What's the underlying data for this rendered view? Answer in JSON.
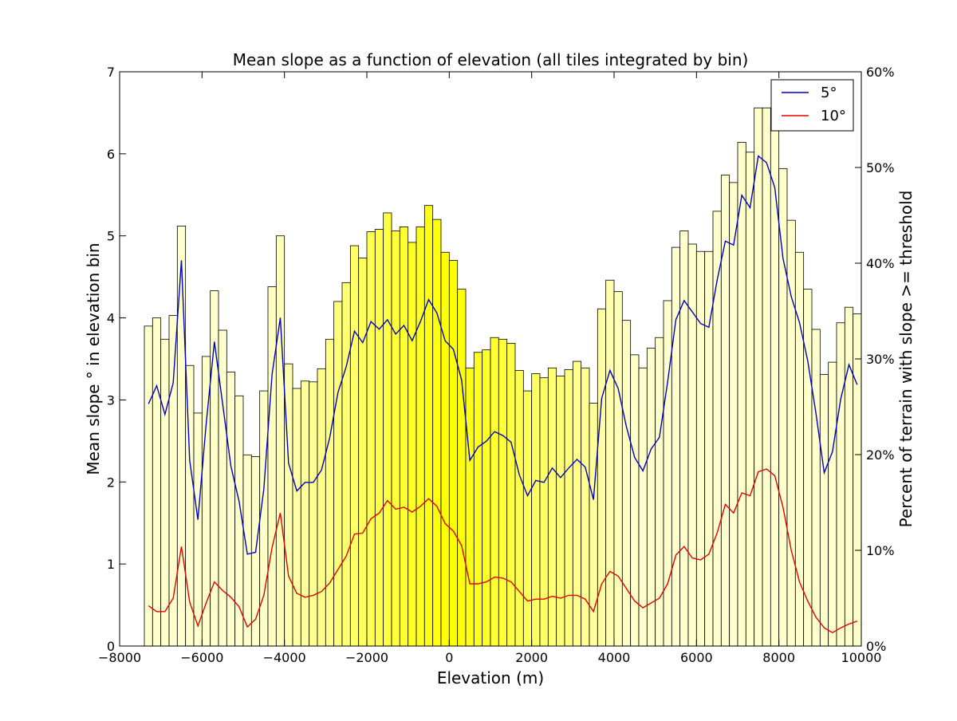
{
  "chart_data": {
    "type": "bar",
    "title": "Mean slope as a function of elevation (all tiles integrated by bin)",
    "xlabel": "Elevation (m)",
    "ylabel": "Mean slope ° in elevation bin",
    "ylabel_right": "Percent of terrain with slope >= threshold",
    "xlim": [
      -8000,
      10000
    ],
    "ylim": [
      0,
      7
    ],
    "ylim_right": [
      0,
      60
    ],
    "x_ticks": [
      -8000,
      -6000,
      -4000,
      -2000,
      0,
      2000,
      4000,
      6000,
      8000,
      10000
    ],
    "x_tick_labels": [
      "−8000",
      "−6000",
      "−4000",
      "−2000",
      "0",
      "2000",
      "4000",
      "6000",
      "8000",
      "10000"
    ],
    "y_ticks": [
      0,
      1,
      2,
      3,
      4,
      5,
      6,
      7
    ],
    "y_tick_labels": [
      "0",
      "1",
      "2",
      "3",
      "4",
      "5",
      "6",
      "7"
    ],
    "y_right_ticks": [
      0,
      10,
      20,
      30,
      40,
      50,
      60
    ],
    "y_right_tick_labels": [
      "0%",
      "10%",
      "20%",
      "30%",
      "40%",
      "50%",
      "60%"
    ],
    "bar_width": 200,
    "bar_colormap": "white-to-yellow (lighter at extreme elevations, darker near 0 m)",
    "bar_x": [
      -7300,
      -7100,
      -6900,
      -6700,
      -6500,
      -6300,
      -6100,
      -5900,
      -5700,
      -5500,
      -5300,
      -5100,
      -4900,
      -4700,
      -4500,
      -4300,
      -4100,
      -3900,
      -3700,
      -3500,
      -3300,
      -3100,
      -2900,
      -2700,
      -2500,
      -2300,
      -2100,
      -1900,
      -1700,
      -1500,
      -1300,
      -1100,
      -900,
      -700,
      -500,
      -300,
      -100,
      100,
      300,
      500,
      700,
      900,
      1100,
      1300,
      1500,
      1700,
      1900,
      2100,
      2300,
      2500,
      2700,
      2900,
      3100,
      3300,
      3500,
      3700,
      3900,
      4100,
      4300,
      4500,
      4700,
      4900,
      5100,
      5300,
      5500,
      5700,
      5900,
      6100,
      6300,
      6500,
      6700,
      6900,
      7100,
      7300,
      7500,
      7700,
      7900,
      8100,
      8300,
      8500,
      8700,
      8900,
      9100,
      9300,
      9500,
      9700,
      9900
    ],
    "bar_values": [
      3.9,
      4.0,
      3.74,
      4.03,
      5.12,
      3.42,
      2.84,
      3.53,
      4.33,
      3.85,
      3.34,
      3.05,
      2.33,
      2.31,
      3.11,
      4.38,
      5.0,
      3.44,
      3.14,
      3.23,
      3.22,
      3.38,
      3.74,
      4.2,
      4.43,
      4.88,
      4.73,
      5.05,
      5.08,
      5.28,
      5.06,
      5.11,
      4.92,
      5.11,
      5.37,
      5.2,
      4.8,
      4.7,
      4.35,
      3.39,
      3.58,
      3.61,
      3.76,
      3.74,
      3.69,
      3.36,
      3.11,
      3.32,
      3.27,
      3.39,
      3.29,
      3.37,
      3.47,
      3.39,
      2.96,
      4.11,
      4.46,
      4.32,
      3.97,
      3.55,
      3.39,
      3.63,
      3.76,
      4.21,
      4.86,
      5.06,
      4.9,
      4.81,
      4.81,
      5.3,
      5.74,
      5.65,
      6.14,
      6.02,
      6.56,
      6.56,
      6.34,
      5.82,
      5.19,
      4.8,
      4.35,
      3.86,
      3.31,
      3.46,
      3.94,
      4.13,
      4.05
    ],
    "series": [
      {
        "name": "5°",
        "color": "#0000cc",
        "axis": "right",
        "x": [
          -7300,
          -7100,
          -6900,
          -6700,
          -6500,
          -6300,
          -6100,
          -5900,
          -5700,
          -5500,
          -5300,
          -5100,
          -4900,
          -4700,
          -4500,
          -4300,
          -4100,
          -3900,
          -3700,
          -3500,
          -3300,
          -3100,
          -2900,
          -2700,
          -2500,
          -2300,
          -2100,
          -1900,
          -1700,
          -1500,
          -1300,
          -1100,
          -900,
          -700,
          -500,
          -300,
          -100,
          100,
          300,
          500,
          700,
          900,
          1100,
          1300,
          1500,
          1700,
          1900,
          2100,
          2300,
          2500,
          2700,
          2900,
          3100,
          3300,
          3500,
          3700,
          3900,
          4100,
          4300,
          4500,
          4700,
          4900,
          5100,
          5300,
          5500,
          5700,
          5900,
          6100,
          6300,
          6500,
          6700,
          6900,
          7100,
          7300,
          7500,
          7700,
          7900,
          8100,
          8300,
          8500,
          8700,
          8900,
          9100,
          9300,
          9500,
          9700,
          9900
        ],
        "values": [
          25.3,
          27.2,
          24.2,
          27.5,
          40.3,
          19.4,
          13.2,
          23.2,
          31.8,
          25.3,
          18.8,
          15.1,
          9.6,
          9.8,
          16.4,
          28.4,
          34.3,
          19.1,
          16.2,
          17.1,
          17.1,
          18.4,
          21.8,
          26.5,
          29.2,
          32.9,
          31.7,
          33.9,
          33.1,
          34.1,
          32.6,
          33.5,
          31.9,
          33.9,
          36.2,
          34.8,
          31.9,
          31.0,
          27.8,
          19.4,
          20.8,
          21.4,
          22.4,
          22.0,
          21.3,
          17.9,
          15.7,
          17.3,
          17.1,
          18.6,
          17.6,
          18.6,
          19.5,
          18.7,
          15.3,
          25.9,
          28.8,
          26.9,
          22.9,
          19.7,
          18.3,
          20.6,
          21.8,
          27.6,
          34.1,
          36.1,
          34.9,
          33.7,
          33.3,
          38.2,
          42.3,
          41.9,
          47.1,
          45.8,
          51.2,
          50.5,
          47.9,
          40.5,
          36.5,
          33.8,
          29.8,
          24.3,
          18.1,
          20.3,
          25.8,
          29.4,
          27.3
        ]
      },
      {
        "name": "10°",
        "color": "#e60000",
        "axis": "right",
        "x": [
          -7300,
          -7100,
          -6900,
          -6700,
          -6500,
          -6300,
          -6100,
          -5900,
          -5700,
          -5500,
          -5300,
          -5100,
          -4900,
          -4700,
          -4500,
          -4300,
          -4100,
          -3900,
          -3700,
          -3500,
          -3300,
          -3100,
          -2900,
          -2700,
          -2500,
          -2300,
          -2100,
          -1900,
          -1700,
          -1500,
          -1300,
          -1100,
          -900,
          -700,
          -500,
          -300,
          -100,
          100,
          300,
          500,
          700,
          900,
          1100,
          1300,
          1500,
          1700,
          1900,
          2100,
          2300,
          2500,
          2700,
          2900,
          3100,
          3300,
          3500,
          3700,
          3900,
          4100,
          4300,
          4500,
          4700,
          4900,
          5100,
          5300,
          5500,
          5700,
          5900,
          6100,
          6300,
          6500,
          6700,
          6900,
          7100,
          7300,
          7500,
          7700,
          7900,
          8100,
          8300,
          8500,
          8700,
          8900,
          9100,
          9300,
          9500,
          9700,
          9900
        ],
        "values": [
          4.2,
          3.6,
          3.6,
          5.0,
          10.4,
          4.6,
          2.1,
          4.5,
          6.7,
          5.8,
          5.1,
          4.1,
          2.0,
          2.8,
          5.3,
          10.3,
          13.9,
          7.3,
          5.5,
          5.1,
          5.3,
          5.7,
          6.6,
          8.0,
          9.4,
          11.7,
          11.8,
          13.3,
          13.9,
          15.2,
          14.3,
          14.5,
          14.0,
          14.6,
          15.4,
          14.6,
          12.8,
          12.0,
          10.5,
          6.5,
          6.5,
          6.7,
          7.2,
          7.1,
          6.7,
          5.7,
          4.7,
          4.9,
          4.9,
          5.2,
          5.0,
          5.3,
          5.3,
          4.9,
          3.6,
          6.5,
          7.8,
          7.3,
          6.0,
          4.7,
          4.0,
          4.5,
          5.0,
          6.5,
          9.5,
          10.4,
          9.2,
          9.0,
          9.6,
          11.8,
          14.8,
          13.9,
          16.0,
          15.7,
          18.2,
          18.5,
          17.8,
          14.5,
          10.0,
          6.7,
          4.7,
          3.0,
          1.9,
          1.4,
          1.9,
          2.3,
          2.6
        ]
      }
    ],
    "legend": {
      "location": "top-right",
      "entries": [
        "5°",
        "10°"
      ]
    }
  }
}
